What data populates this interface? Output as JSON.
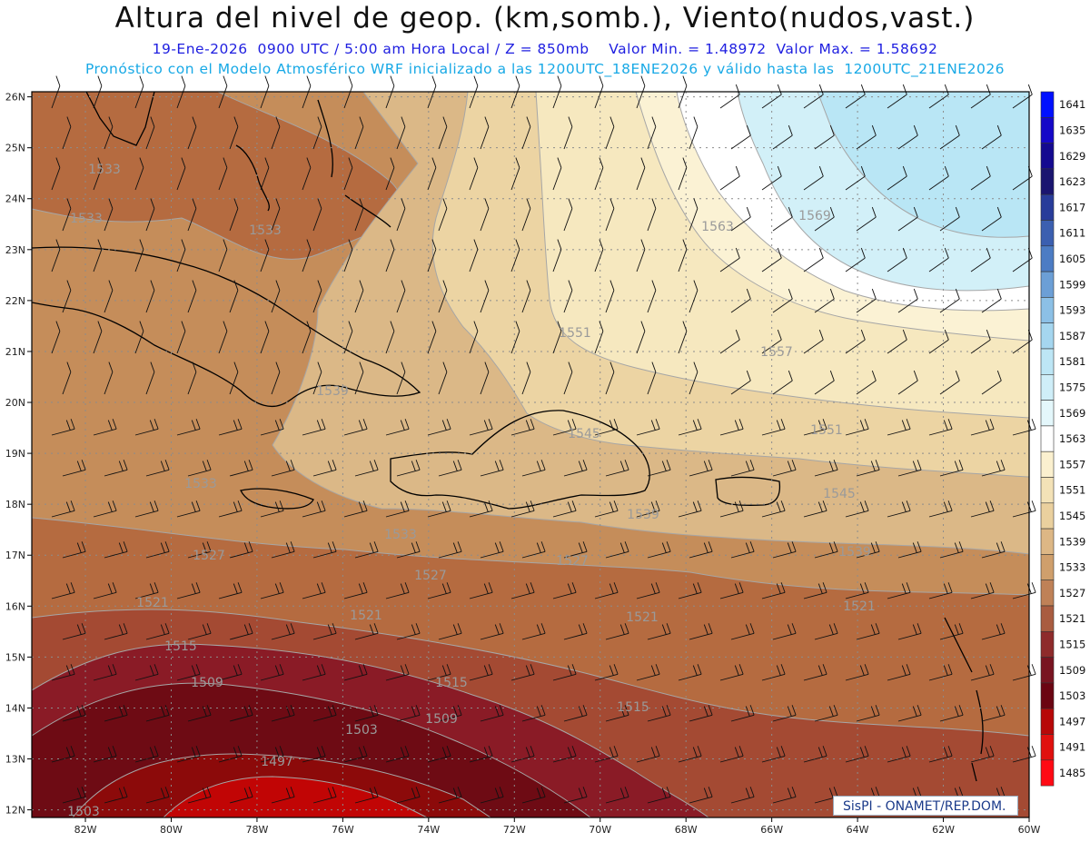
{
  "header": {
    "title": "Altura del nivel de geop. (km,somb.), Viento(nudos,vast.)",
    "subtitle_1": "19-Ene-2026  0900 UTC / 5:00 am Hora Local / Z = 850mb    Valor Min. = 1.48972  Valor Max. = 1.58692",
    "subtitle_2": "Pronóstico con el Modelo Atmosférico WRF inicializado a las 1200UTC_18ENE2026 y válido hasta las  1200UTC_21ENE2026"
  },
  "map": {
    "lat_labels": [
      "26N",
      "25N",
      "24N",
      "23N",
      "22N",
      "21N",
      "20N",
      "19N",
      "18N",
      "17N",
      "16N",
      "15N",
      "14N",
      "13N",
      "12N"
    ],
    "lon_labels": [
      "82W",
      "80W",
      "78W",
      "76W",
      "74W",
      "72W",
      "70W",
      "68W",
      "66W",
      "64W",
      "62W",
      "60W"
    ],
    "contour_labels": [
      "1533",
      "1533",
      "1533",
      "1569",
      "1563",
      "1557",
      "1551",
      "1551",
      "1545",
      "1545",
      "1539",
      "1539",
      "1539",
      "1533",
      "1533",
      "1527",
      "1527",
      "1527",
      "1521",
      "1521",
      "1521",
      "1521",
      "1515",
      "1515",
      "1515",
      "1509",
      "1509",
      "1503",
      "1503",
      "1497"
    ],
    "colors": {
      "c1485": "#ff0a14",
      "c1491": "#e00a0a",
      "c1497": "#c10505",
      "c1503": "#8c0a0a",
      "c1509": "#6e0b14",
      "c1515": "#8a1b26",
      "c1521": "#a44a33",
      "c1527": "#b56b40",
      "c1533": "#c58d5a",
      "c1539": "#dbb887",
      "c1545": "#ecd4a3",
      "c1551": "#f6e8bf",
      "c1557": "#fbf2d4",
      "c1563": "#ffffff",
      "c1569": "#d2f0f8",
      "c1575": "#b9e6f5"
    }
  },
  "colorbar": {
    "labels": [
      "1641",
      "1635",
      "1629",
      "1623",
      "1617",
      "1611",
      "1605",
      "1599",
      "1593",
      "1587",
      "1581",
      "1575",
      "1569",
      "1563",
      "1557",
      "1551",
      "1545",
      "1539",
      "1533",
      "1527",
      "1521",
      "1515",
      "1509",
      "1503",
      "1497",
      "1491",
      "1485"
    ],
    "colors": [
      "#0010ff",
      "#1508c8",
      "#140a90",
      "#1a1570",
      "#283c9a",
      "#3b5fb0",
      "#4c7cc4",
      "#6c9fd6",
      "#8cc0e6",
      "#a5d6ef",
      "#bde6f5",
      "#cfeef8",
      "#e4f7fb",
      "#ffffff",
      "#fbf0cf",
      "#f3e2b7",
      "#ead09e",
      "#ddb785",
      "#cf9f6c",
      "#bf8157",
      "#a95c40",
      "#8e2b2b",
      "#781420",
      "#6b0512",
      "#b70808",
      "#e0100e",
      "#ff0a14"
    ]
  },
  "credit": {
    "text": "SisPI - ONAMET/REP.DOM."
  }
}
